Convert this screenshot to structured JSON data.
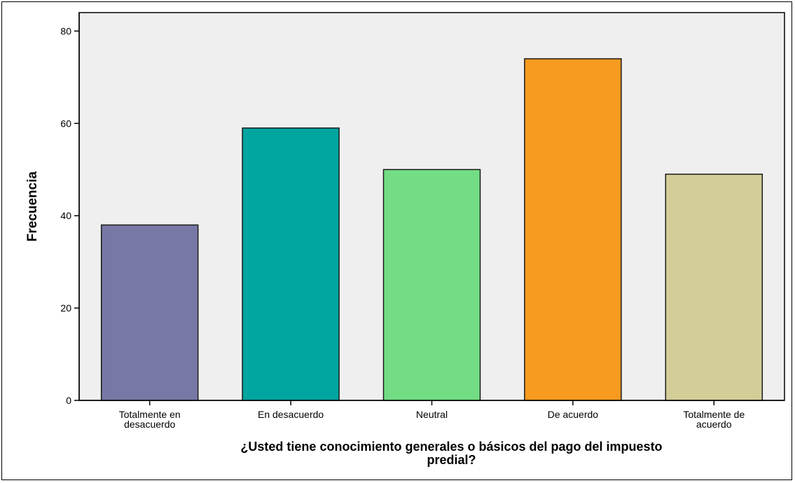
{
  "chart_data": {
    "type": "bar",
    "categories": [
      [
        "Totalmente en",
        "desacuerdo"
      ],
      [
        "En desacuerdo"
      ],
      [
        "Neutral"
      ],
      [
        "De acuerdo"
      ],
      [
        "Totalmente de",
        "acuerdo"
      ]
    ],
    "values": [
      38,
      59,
      50,
      74,
      49
    ],
    "colors": [
      "#7878a6",
      "#00a5a0",
      "#72dd84",
      "#f89a1f",
      "#d3ce98"
    ],
    "ylabel": "Frecuencia",
    "xlabel": [
      "¿Usted tiene conocimiento generales o básicos del pago del impuesto",
      "predial?"
    ],
    "ylim": [
      0,
      84
    ],
    "yticks": [
      0,
      20,
      40,
      60,
      80
    ],
    "plot_background": "#efefef",
    "grid": false
  }
}
